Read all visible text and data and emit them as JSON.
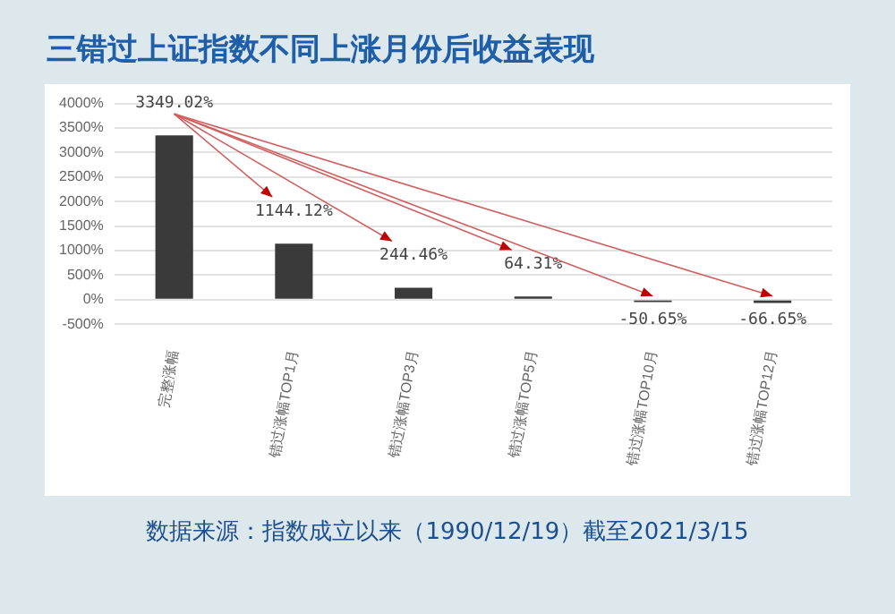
{
  "chart_data": {
    "type": "bar",
    "title": "三错过上证指数不同上涨月份后收益表现",
    "categories": [
      "完整涨幅",
      "错过涨幅TOP1月",
      "错过涨幅TOP3月",
      "错过涨幅TOP5月",
      "错过涨幅TOP10月",
      "错过涨幅TOP12月"
    ],
    "values": [
      3349.02,
      1144.12,
      244.46,
      64.31,
      -50.65,
      -66.65
    ],
    "value_labels": [
      "3349.02%",
      "1144.12%",
      "244.46%",
      "64.31%",
      "-50.65%",
      "-66.65%"
    ],
    "color": "#3a3a3a",
    "ylim": [
      -500,
      4000
    ],
    "yticks": [
      {
        "value": -500,
        "label": "-500%"
      },
      {
        "value": 0,
        "label": "0%"
      },
      {
        "value": 500,
        "label": "500%"
      },
      {
        "value": 1000,
        "label": "1000%"
      },
      {
        "value": 1500,
        "label": "1500%"
      },
      {
        "value": 2000,
        "label": "2000%"
      },
      {
        "value": 2500,
        "label": "2500%"
      },
      {
        "value": 3000,
        "label": "3000%"
      },
      {
        "value": 3500,
        "label": "3500%"
      },
      {
        "value": 4000,
        "label": "4000%"
      }
    ],
    "grid": "y",
    "annotations": [
      "数据来源：指数成立以来（1990/12/19）截至2021/3/15"
    ]
  }
}
